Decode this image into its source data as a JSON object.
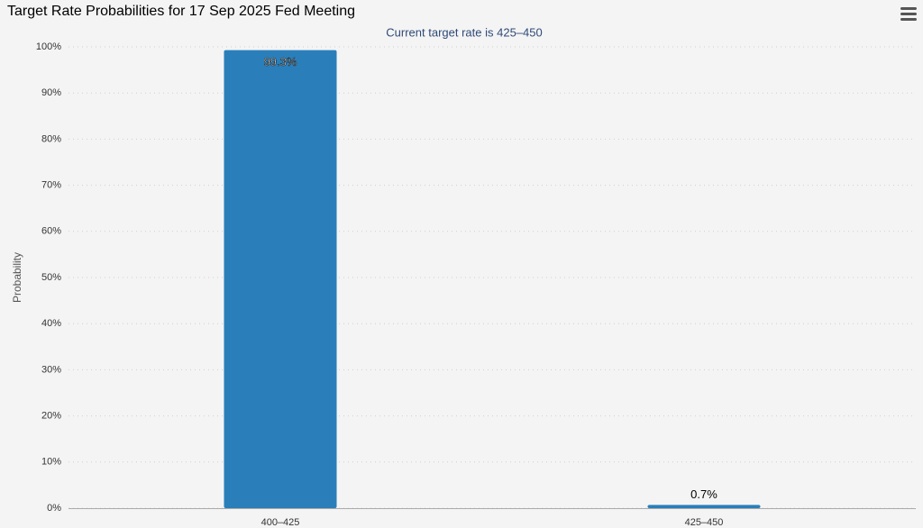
{
  "chart_data": {
    "type": "bar",
    "title": "Target Rate Probabilities for 17 Sep 2025 Fed Meeting",
    "subtitle": "Current target rate is 425–450",
    "y_axis_label": "Probability",
    "categories": [
      "400–425",
      "425–450"
    ],
    "values": [
      99.3,
      0.7
    ],
    "value_labels": [
      "99.3%",
      "0.7%"
    ],
    "color": "#2a7fba",
    "ylim": [
      0,
      100
    ],
    "yticks": [
      {
        "value": 0,
        "label": "0%"
      },
      {
        "value": 10,
        "label": "10%"
      },
      {
        "value": 20,
        "label": "20%"
      },
      {
        "value": 30,
        "label": "30%"
      },
      {
        "value": 40,
        "label": "40%"
      },
      {
        "value": 50,
        "label": "50%"
      },
      {
        "value": 60,
        "label": "60%"
      },
      {
        "value": 70,
        "label": "70%"
      },
      {
        "value": 80,
        "label": "80%"
      },
      {
        "value": 90,
        "label": "90%"
      },
      {
        "value": 100,
        "label": "100%"
      }
    ],
    "grid": true
  }
}
